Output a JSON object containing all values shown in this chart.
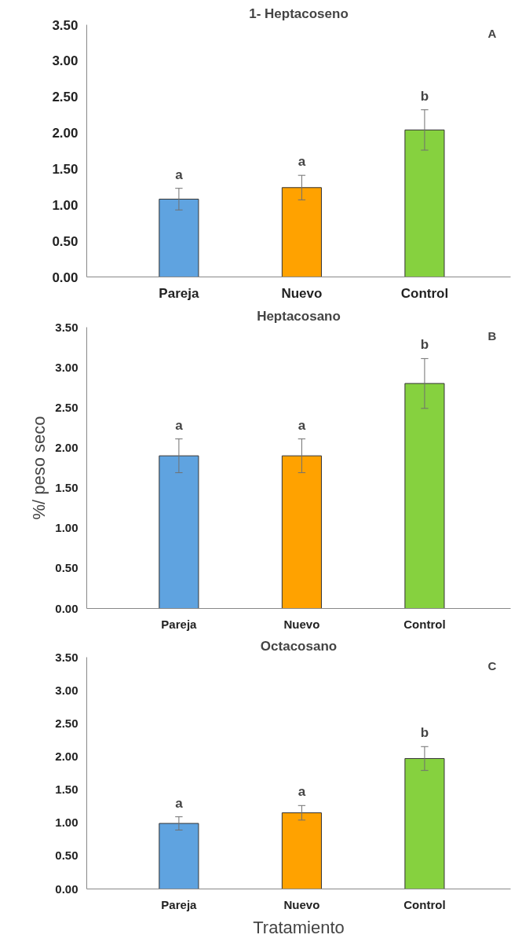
{
  "chart_data": [
    {
      "type": "bar",
      "title": "1- Heptacoseno",
      "categories": [
        "Pareja",
        "Nuevo",
        "Control"
      ],
      "values": [
        1.08,
        1.24,
        2.04
      ],
      "errors": [
        0.15,
        0.17,
        0.28
      ],
      "colors": [
        "#5fa3e0",
        "#ffa200",
        "#86d13f"
      ],
      "ylim": [
        0,
        3.5
      ],
      "yticks": [
        {
          "value": 0,
          "label": "0.00"
        },
        {
          "value": 0.5,
          "label": "0.50"
        },
        {
          "value": 1,
          "label": "1.00"
        },
        {
          "value": 1.5,
          "label": "1.50"
        },
        {
          "value": 2,
          "label": "2.00"
        },
        {
          "value": 2.5,
          "label": "2.50"
        },
        {
          "value": 3,
          "label": "3.00"
        },
        {
          "value": 3.5,
          "label": "3.50"
        }
      ],
      "grid": false,
      "annotations": [
        "A",
        "a",
        "a",
        "b"
      ]
    },
    {
      "type": "bar",
      "title": "Heptacosano",
      "ylabel": "%/ peso seco",
      "categories": [
        "Pareja",
        "Nuevo",
        "Control"
      ],
      "values": [
        1.9,
        1.9,
        2.8
      ],
      "errors": [
        0.21,
        0.21,
        0.31
      ],
      "colors": [
        "#5fa3e0",
        "#ffa200",
        "#86d13f"
      ],
      "ylim": [
        0,
        3.5
      ],
      "yticks": [
        {
          "value": 0,
          "label": "0.00"
        },
        {
          "value": 0.5,
          "label": "0.50"
        },
        {
          "value": 1,
          "label": "1.00"
        },
        {
          "value": 1.5,
          "label": "1.50"
        },
        {
          "value": 2,
          "label": "2.00"
        },
        {
          "value": 2.5,
          "label": "2.50"
        },
        {
          "value": 3,
          "label": "3.00"
        },
        {
          "value": 3.5,
          "label": "3.50"
        }
      ],
      "grid": false,
      "annotations": [
        "B",
        "a",
        "a",
        "b"
      ]
    },
    {
      "type": "bar",
      "title": "Octacosano",
      "xlabel": "Tratamiento",
      "categories": [
        "Pareja",
        "Nuevo",
        "Control"
      ],
      "values": [
        0.99,
        1.15,
        1.97
      ],
      "errors": [
        0.1,
        0.11,
        0.18
      ],
      "colors": [
        "#5fa3e0",
        "#ffa200",
        "#86d13f"
      ],
      "ylim": [
        0,
        3.5
      ],
      "yticks": [
        {
          "value": 0,
          "label": "0.00"
        },
        {
          "value": 0.5,
          "label": "0.50"
        },
        {
          "value": 1,
          "label": "1.00"
        },
        {
          "value": 1.5,
          "label": "1.50"
        },
        {
          "value": 2,
          "label": "2.00"
        },
        {
          "value": 2.5,
          "label": "2.50"
        },
        {
          "value": 3,
          "label": "3.00"
        },
        {
          "value": 3.5,
          "label": "3.50"
        }
      ],
      "grid": false,
      "annotations": [
        "C",
        "a",
        "a",
        "b"
      ]
    }
  ]
}
